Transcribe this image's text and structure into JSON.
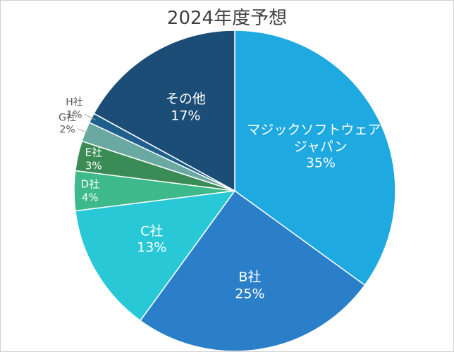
{
  "chart_data": {
    "type": "pie",
    "title": "2024年度予想",
    "categories": [
      "マジックソフトウェア・ジャパン",
      "B社",
      "C社",
      "D社",
      "E社",
      "G社",
      "H社",
      "その他"
    ],
    "values": [
      35,
      25,
      13,
      4,
      3,
      2,
      1,
      17
    ],
    "value_labels": [
      "35%",
      "25%",
      "13%",
      "4%",
      "3%",
      "2%",
      "1%",
      "17%"
    ],
    "colors": [
      "#1ea9e1",
      "#2b7fc8",
      "#29c8d6",
      "#3db98c",
      "#3a8b55",
      "#69a9a2",
      "#1e5f8b",
      "#1b4d77"
    ]
  }
}
